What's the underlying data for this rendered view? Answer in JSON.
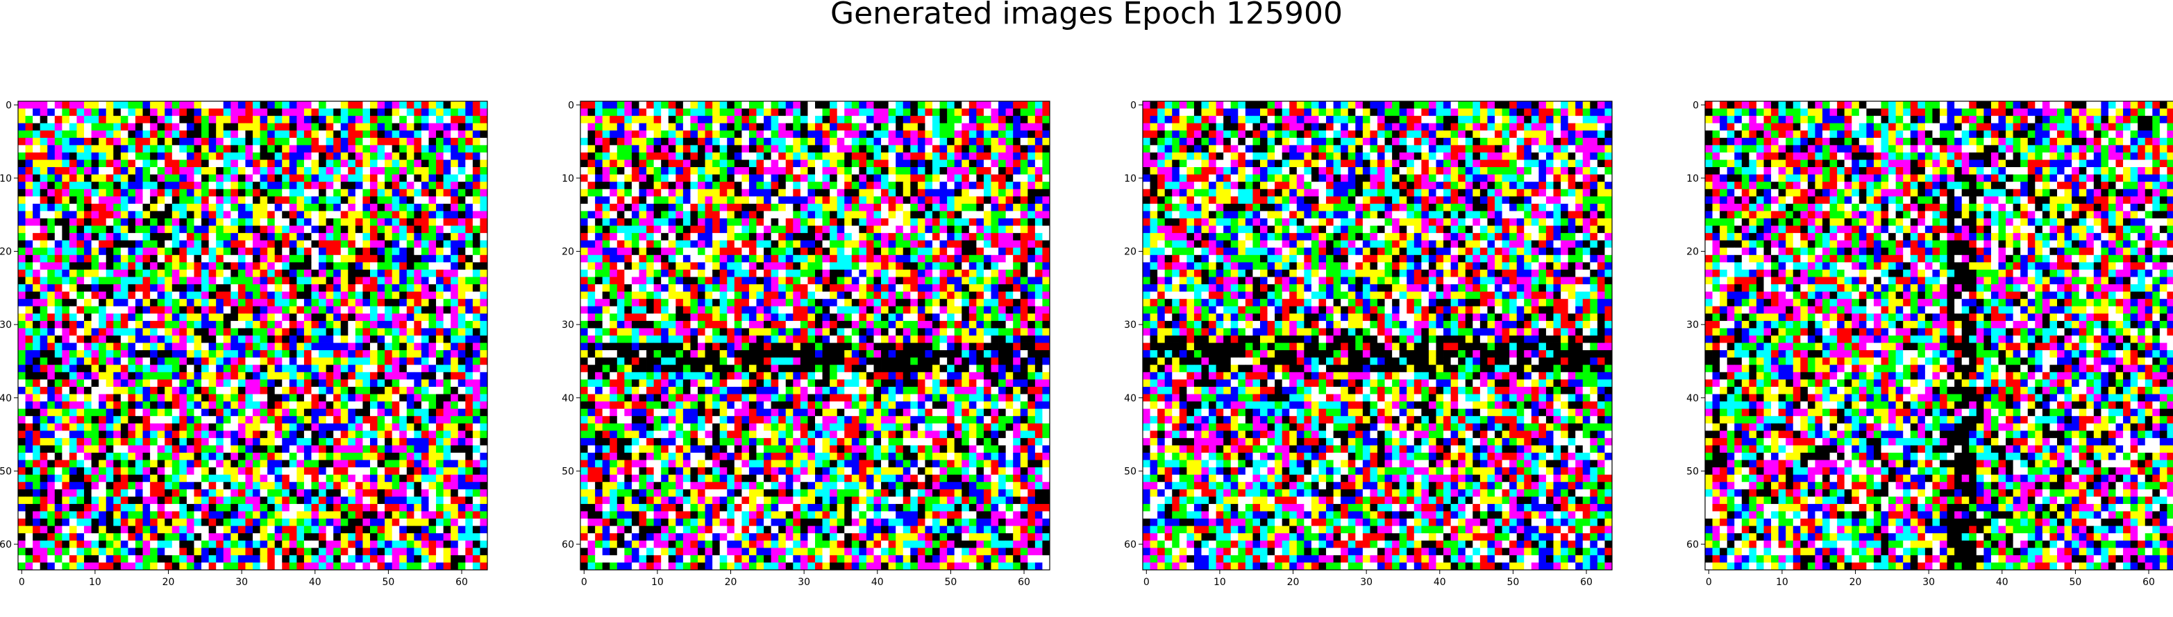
{
  "figure": {
    "title": "Generated images Epoch 125900"
  },
  "chart_data": [
    {
      "type": "heatmap",
      "description_of_values": "64x64 RGB image of saturated noise pixels",
      "x_ticks": [
        "0",
        "10",
        "20",
        "30",
        "40",
        "50",
        "60"
      ],
      "y_ticks": [
        "0",
        "10",
        "20",
        "30",
        "40",
        "50",
        "60"
      ],
      "xlim": [
        -0.5,
        63.5
      ],
      "ylim": [
        63.5,
        -0.5
      ],
      "palette": [
        "#ff0000",
        "#00ff00",
        "#0000ff",
        "#ffff00",
        "#ff00ff",
        "#00ffff",
        "#ffffff",
        "#000000"
      ],
      "seed": 11,
      "features": []
    },
    {
      "type": "heatmap",
      "description_of_values": "64x64 RGB image of saturated noise pixels",
      "x_ticks": [
        "0",
        "10",
        "20",
        "30",
        "40",
        "50",
        "60"
      ],
      "y_ticks": [
        "0",
        "10",
        "20",
        "30",
        "40",
        "50",
        "60"
      ],
      "xlim": [
        -0.5,
        63.5
      ],
      "ylim": [
        63.5,
        -0.5
      ],
      "palette": [
        "#ff0000",
        "#00ff00",
        "#0000ff",
        "#ffff00",
        "#ff00ff",
        "#00ffff",
        "#ffffff",
        "#000000"
      ],
      "seed": 23,
      "features": [
        {
          "kind": "dark-horizontal-band",
          "row_range": [
            33,
            36
          ]
        }
      ]
    },
    {
      "type": "heatmap",
      "description_of_values": "64x64 RGB image of saturated noise pixels",
      "x_ticks": [
        "0",
        "10",
        "20",
        "30",
        "40",
        "50",
        "60"
      ],
      "y_ticks": [
        "0",
        "10",
        "20",
        "30",
        "40",
        "50",
        "60"
      ],
      "xlim": [
        -0.5,
        63.5
      ],
      "ylim": [
        63.5,
        -0.5
      ],
      "palette": [
        "#ff0000",
        "#00ff00",
        "#0000ff",
        "#ffff00",
        "#ff00ff",
        "#00ffff",
        "#ffffff",
        "#000000"
      ],
      "seed": 37,
      "features": [
        {
          "kind": "dark-horizontal-band",
          "row_range": [
            32,
            36
          ]
        }
      ]
    },
    {
      "type": "heatmap",
      "description_of_values": "64x64 RGB image of saturated noise pixels",
      "x_ticks": [
        "0",
        "10",
        "20",
        "30",
        "40",
        "50",
        "60"
      ],
      "y_ticks": [
        "0",
        "10",
        "20",
        "30",
        "40",
        "50",
        "60"
      ],
      "xlim": [
        -0.5,
        63.5
      ],
      "ylim": [
        63.5,
        -0.5
      ],
      "palette": [
        "#ff0000",
        "#00ff00",
        "#0000ff",
        "#ffff00",
        "#ff00ff",
        "#00ffff",
        "#ffffff",
        "#000000"
      ],
      "seed": 53,
      "features": [
        {
          "kind": "dark-vertical-band",
          "col_range": [
            33,
            36
          ]
        }
      ]
    }
  ]
}
